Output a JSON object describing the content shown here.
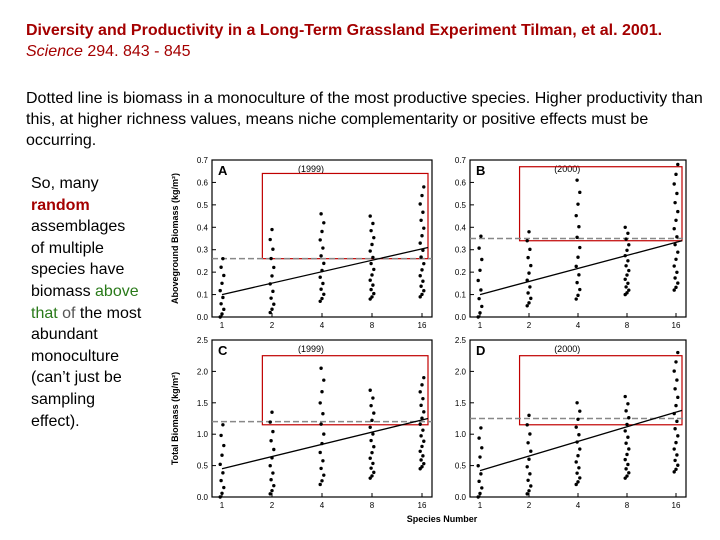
{
  "slide": {
    "title_main": "Diversity and Productivity in a Long-Term Grassland Experiment Tilman, et al. 2001. ",
    "title_journal": "Science",
    "title_ref": " 294. 843 - 845",
    "description": "Dotted line is biomass in a monoculture of the most productive species. Higher productivity than this, at higher richness values, means niche complementarity or positive effects must be occurring.",
    "side": {
      "p1": "So, many ",
      "random": "random",
      "p2": " assemblages of multiple species have biomass ",
      "above_that": "above that",
      "of_word": " of",
      "p3": " the most abundant monoculture (can’t just be sampling effect)."
    }
  },
  "chart_data": [
    {
      "type": "scatter",
      "panel": "A",
      "year": "(1999)",
      "ylabel": "Aboveground Biomass (kg/m²)",
      "ylim": [
        0,
        0.7
      ],
      "yticks": [
        "0.0",
        "0.1",
        "0.2",
        "0.3",
        "0.4",
        "0.5",
        "0.6",
        "0.7"
      ],
      "xticks": [
        "1",
        "2",
        "4",
        "8",
        "16"
      ],
      "x": [
        1,
        2,
        4,
        8,
        16
      ],
      "y_min": [
        0.0,
        0.02,
        0.07,
        0.08,
        0.09
      ],
      "y_max": [
        0.26,
        0.39,
        0.46,
        0.45,
        0.58
      ],
      "monoculture_line": 0.26,
      "regression": [
        0.1,
        0.31
      ],
      "box_y": [
        0.26,
        0.64
      ]
    },
    {
      "type": "scatter",
      "panel": "B",
      "year": "(2000)",
      "ylim": [
        0,
        0.7
      ],
      "yticks": [
        "0.0",
        "0.1",
        "0.2",
        "0.3",
        "0.4",
        "0.5",
        "0.6",
        "0.7"
      ],
      "xticks": [
        "1",
        "2",
        "4",
        "8",
        "16"
      ],
      "x": [
        1,
        2,
        4,
        8,
        16
      ],
      "y_min": [
        0.0,
        0.05,
        0.08,
        0.1,
        0.12
      ],
      "y_max": [
        0.36,
        0.38,
        0.61,
        0.4,
        0.68
      ],
      "monoculture_line": 0.35,
      "regression": [
        0.1,
        0.34
      ],
      "box_y": [
        0.34,
        0.67
      ]
    },
    {
      "type": "scatter",
      "panel": "C",
      "year": "(1999)",
      "ylabel": "Total Biomass (kg/m²)",
      "ylim": [
        0,
        2.5
      ],
      "yticks": [
        "0.0",
        "0.5",
        "1.0",
        "1.5",
        "2.0",
        "2.5"
      ],
      "xticks": [
        "1",
        "2",
        "4",
        "8",
        "16"
      ],
      "x": [
        1,
        2,
        4,
        8,
        16
      ],
      "y_min": [
        0.0,
        0.05,
        0.2,
        0.3,
        0.45
      ],
      "y_max": [
        1.15,
        1.35,
        2.05,
        1.7,
        1.9
      ],
      "monoculture_line": 1.2,
      "regression": [
        0.45,
        1.25
      ],
      "box_y": [
        1.15,
        2.25
      ]
    },
    {
      "type": "scatter",
      "panel": "D",
      "year": "(2000)",
      "xlabel": "Species Number",
      "ylim": [
        0,
        2.5
      ],
      "yticks": [
        "0.0",
        "0.5",
        "1.0",
        "1.5",
        "2.0",
        "2.5"
      ],
      "xticks": [
        "1",
        "2",
        "4",
        "8",
        "16"
      ],
      "x": [
        1,
        2,
        4,
        8,
        16
      ],
      "y_min": [
        0.0,
        0.05,
        0.2,
        0.3,
        0.4
      ],
      "y_max": [
        1.1,
        1.3,
        1.5,
        1.6,
        2.3
      ],
      "monoculture_line": 1.25,
      "regression": [
        0.42,
        1.38
      ],
      "box_y": [
        1.15,
        2.25
      ]
    }
  ]
}
